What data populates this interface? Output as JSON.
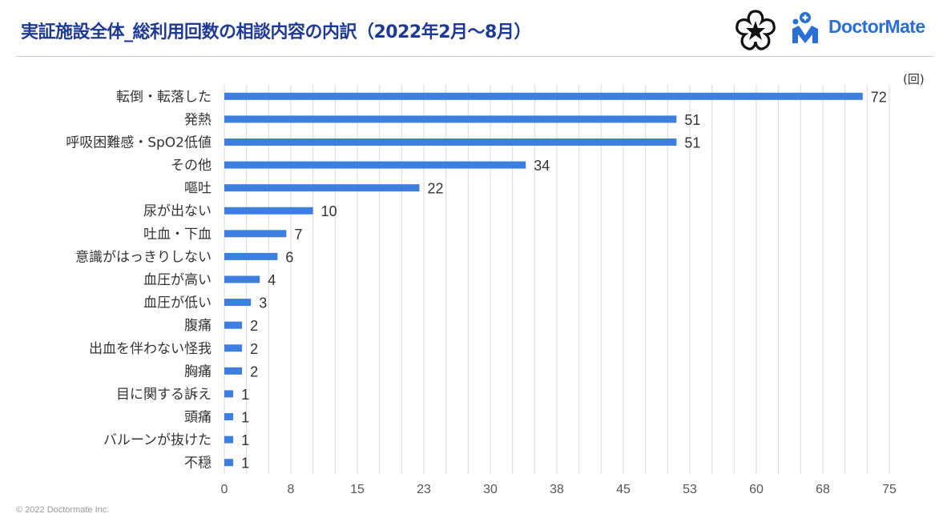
{
  "header": {
    "title": "実証施設全体_総利用回数の相談内容の内訳（2022年2月～8月）",
    "brand_name": "DoctorMate"
  },
  "footer": {
    "copyright": "© 2022 Doctormate Inc."
  },
  "colors": {
    "bar": "#3d7fe0",
    "title": "#1f3a93",
    "brand": "#2a6fd6",
    "grid": "#d9d9d9"
  },
  "chart_data": {
    "type": "bar",
    "orientation": "horizontal",
    "unit_label": "(回)",
    "categories": [
      "転倒・転落した",
      "発熱",
      "呼吸困難感・SpO2低値",
      "その他",
      "嘔吐",
      "尿が出ない",
      "吐血・下血",
      "意識がはっきりしない",
      "血圧が高い",
      "血圧が低い",
      "腹痛",
      "出血を伴わない怪我",
      "胸痛",
      "目に関する訴え",
      "頭痛",
      "バルーンが抜けた",
      "不穏"
    ],
    "values": [
      72,
      51,
      51,
      34,
      22,
      10,
      7,
      6,
      4,
      3,
      2,
      2,
      2,
      1,
      1,
      1,
      1
    ],
    "xlim": [
      0,
      75
    ],
    "xticks": [
      0,
      7.5,
      15,
      22.5,
      30,
      37.5,
      45,
      52.5,
      60,
      67.5,
      75
    ],
    "xtick_labels": [
      "0",
      "8",
      "15",
      "23",
      "30",
      "38",
      "45",
      "53",
      "60",
      "68",
      "75"
    ],
    "grid": true,
    "legend": "none"
  }
}
